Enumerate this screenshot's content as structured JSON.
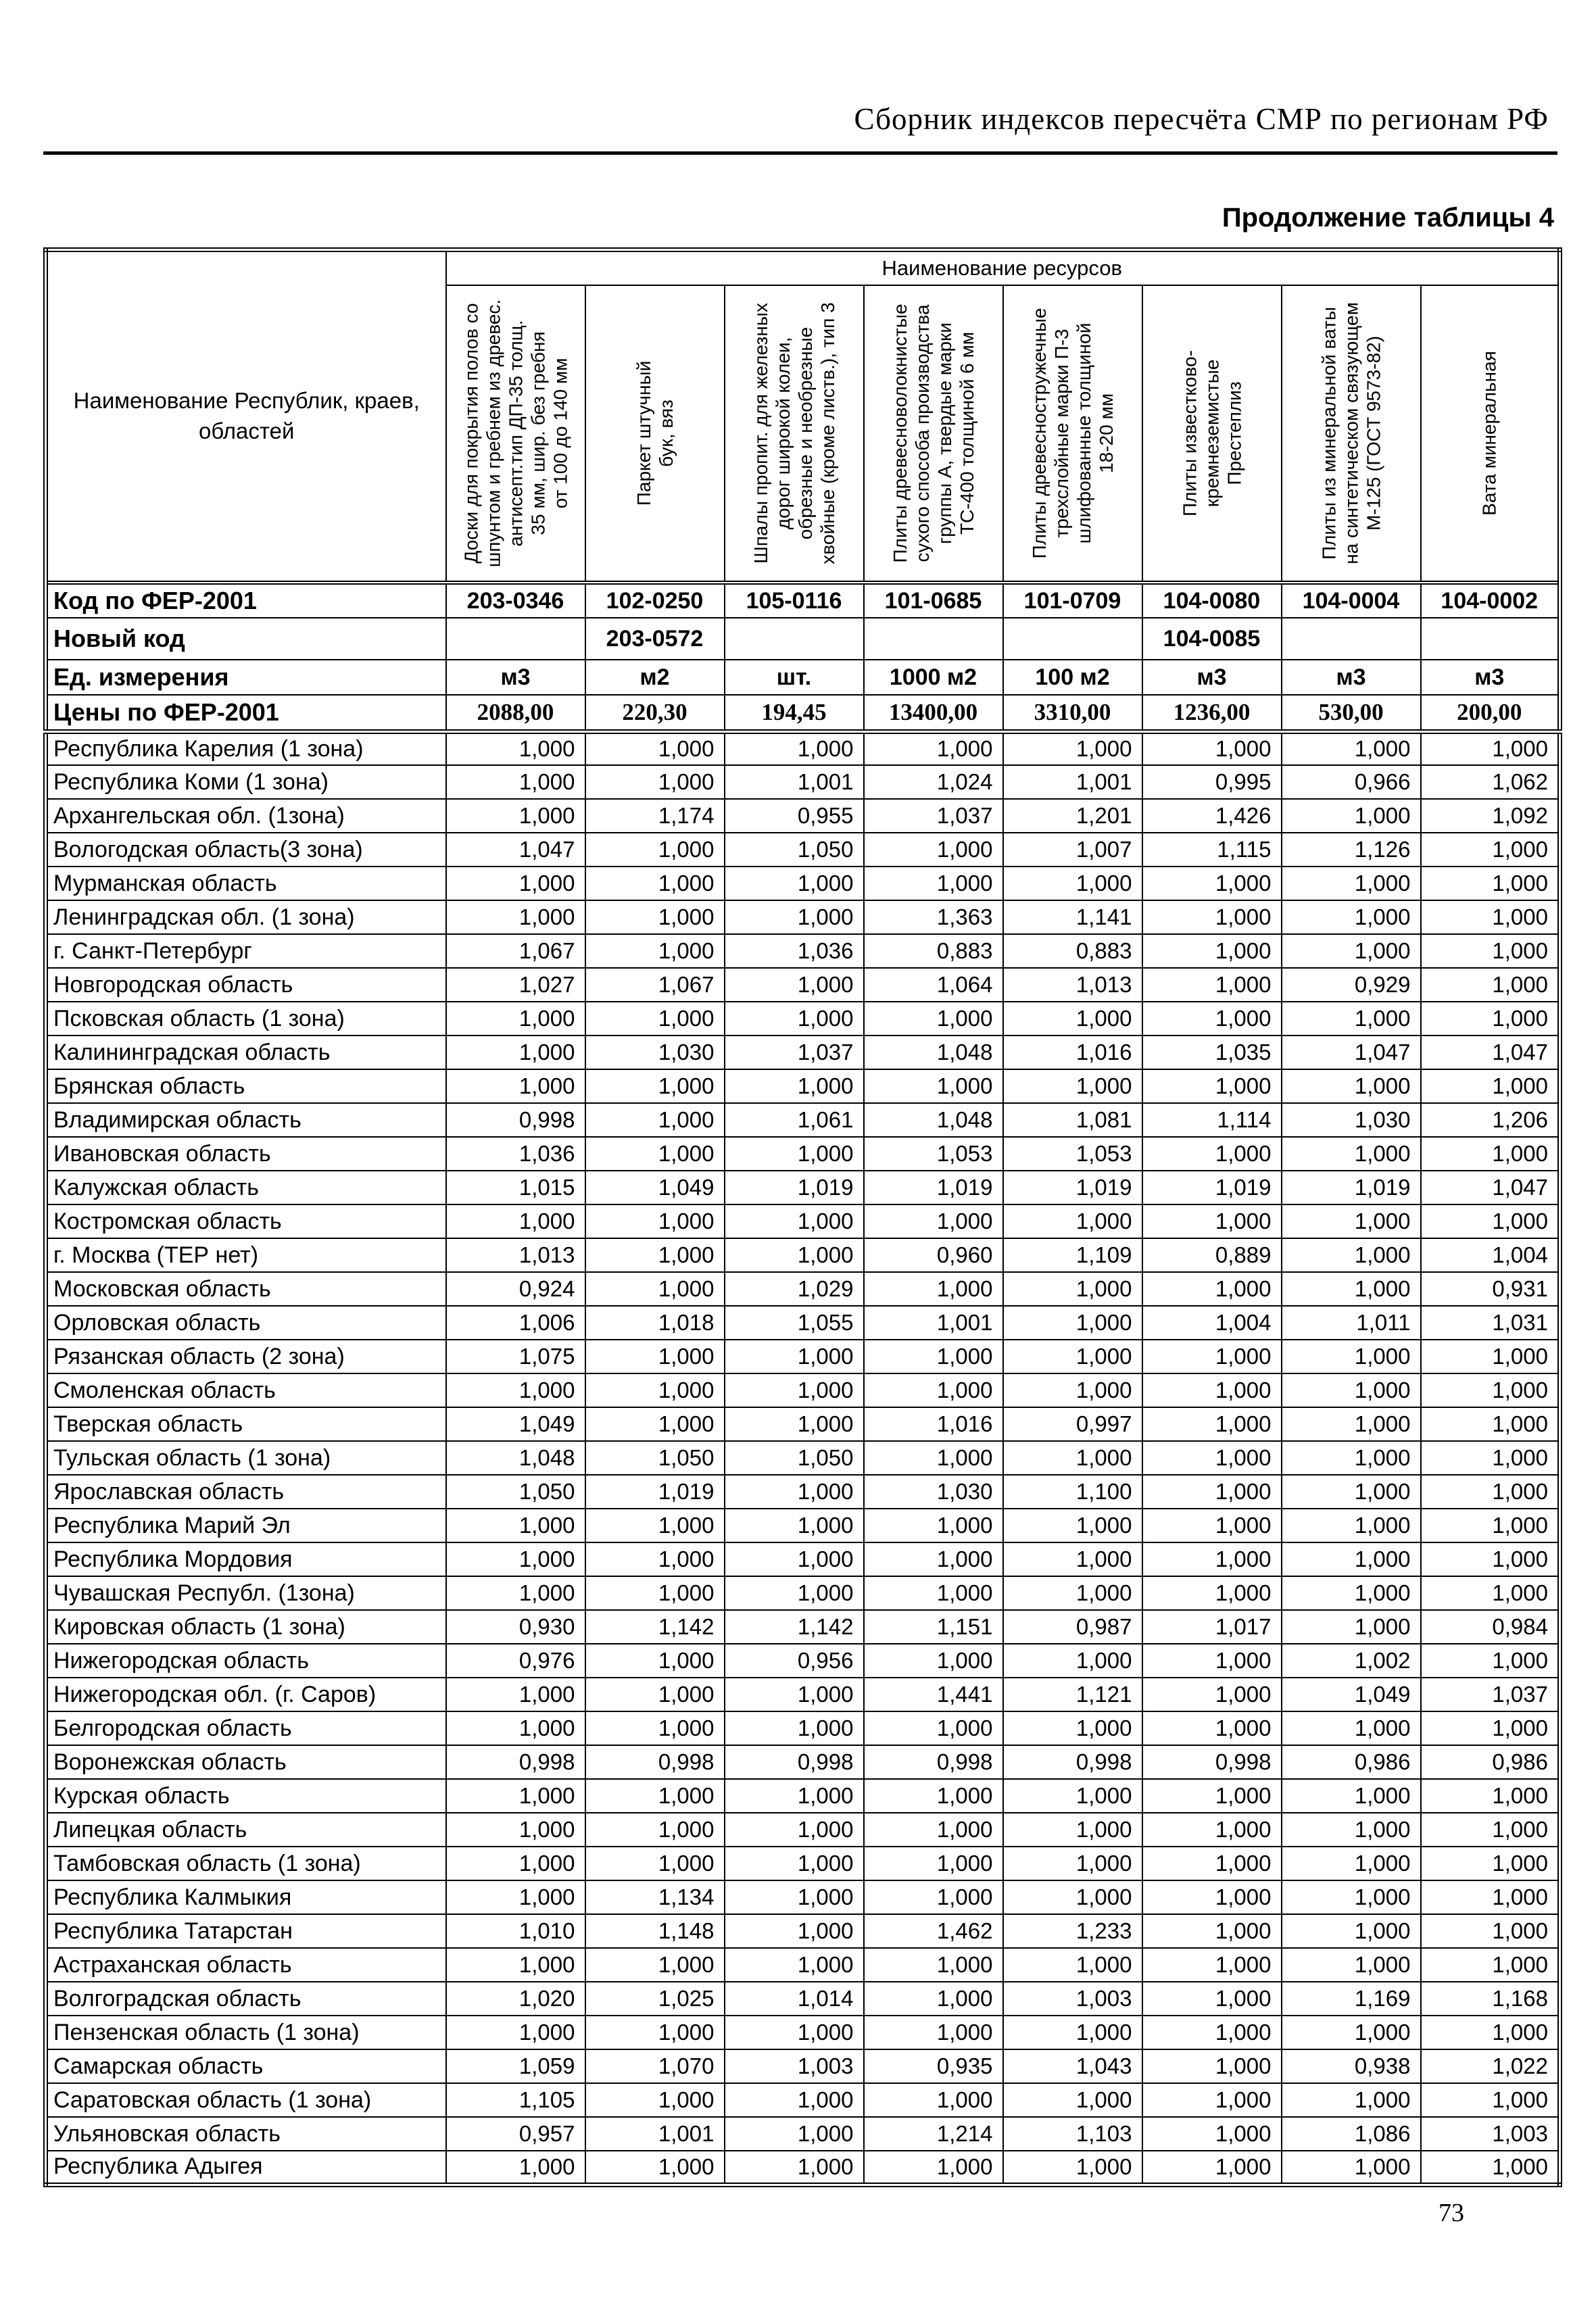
{
  "page": {
    "header_title": "Сборник индексов пересчёта СМР  по регионам РФ",
    "table_caption": "Продолжение таблицы 4",
    "page_number": "73"
  },
  "table": {
    "region_header": "Наименование Республик, краев,\nобластей",
    "resources_header": "Наименование ресурсов",
    "columns": [
      "Доски для  покрытия полов со\nшпунтом и гребнем  из древес.\nантисепт.тип  ДП-35 толщ.\n35 мм, шир. без гребня\nот 100 до 140 мм",
      "Паркет штучный\nбук, вяз",
      "Шпалы пропит. для железных\nдорог широкой колеи,\nобрезные и необрезные\nхвойные (кроме листв.), тип 3",
      "Плиты  древесноволокнистые\nсухого способа производства\nгруппы А, твердые марки\nТС-400 толщиной 6 мм",
      "Плиты древесностружечные\nтрехслойные марки П-3\nшлифованные  толщиной\n18-20 мм",
      "Плиты известково-\nкремнеземистые\nПрестеплиз",
      "Плиты из минеральной  ваты\nна синтетическом связующем\nМ-125 (ГОСТ 9573-82)",
      "Вата минеральная"
    ],
    "meta_rows": [
      {
        "label": "Код по ФЕР-2001",
        "values": [
          "203-0346",
          "102-0250",
          "105-0116",
          "101-0685",
          "101-0709",
          "104-0080",
          "104-0004",
          "104-0002"
        ]
      },
      {
        "label": "Новый код",
        "values": [
          "",
          "203-0572",
          "",
          "",
          "",
          "104-0085",
          "",
          ""
        ]
      },
      {
        "label": "Ед. измерения",
        "values": [
          "м3",
          "м2",
          "шт.",
          "1000 м2",
          "100 м2",
          "м3",
          "м3",
          "м3"
        ]
      },
      {
        "label": "Цены по ФЕР-2001",
        "values": [
          "2088,00",
          "220,30",
          "194,45",
          "13400,00",
          "3310,00",
          "1236,00",
          "530,00",
          "200,00"
        ]
      }
    ],
    "regions": [
      {
        "name": "Республика Карелия (1 зона)",
        "values": [
          "1,000",
          "1,000",
          "1,000",
          "1,000",
          "1,000",
          "1,000",
          "1,000",
          "1,000"
        ]
      },
      {
        "name": "Республика Коми (1 зона)",
        "values": [
          "1,000",
          "1,000",
          "1,001",
          "1,024",
          "1,001",
          "0,995",
          "0,966",
          "1,062"
        ]
      },
      {
        "name": "Архангельская обл. (1зона)",
        "values": [
          "1,000",
          "1,174",
          "0,955",
          "1,037",
          "1,201",
          "1,426",
          "1,000",
          "1,092"
        ]
      },
      {
        "name": "Вологодская область(3 зона)",
        "values": [
          "1,047",
          "1,000",
          "1,050",
          "1,000",
          "1,007",
          "1,115",
          "1,126",
          "1,000"
        ]
      },
      {
        "name": "Мурманская область",
        "values": [
          "1,000",
          "1,000",
          "1,000",
          "1,000",
          "1,000",
          "1,000",
          "1,000",
          "1,000"
        ]
      },
      {
        "name": "Ленинградская обл. (1 зона)",
        "values": [
          "1,000",
          "1,000",
          "1,000",
          "1,363",
          "1,141",
          "1,000",
          "1,000",
          "1,000"
        ]
      },
      {
        "name": "г. Санкт-Петербург",
        "values": [
          "1,067",
          "1,000",
          "1,036",
          "0,883",
          "0,883",
          "1,000",
          "1,000",
          "1,000"
        ]
      },
      {
        "name": "Новгородская область",
        "values": [
          "1,027",
          "1,067",
          "1,000",
          "1,064",
          "1,013",
          "1,000",
          "0,929",
          "1,000"
        ]
      },
      {
        "name": "Псковская область (1 зона)",
        "values": [
          "1,000",
          "1,000",
          "1,000",
          "1,000",
          "1,000",
          "1,000",
          "1,000",
          "1,000"
        ]
      },
      {
        "name": "Калининградская область",
        "values": [
          "1,000",
          "1,030",
          "1,037",
          "1,048",
          "1,016",
          "1,035",
          "1,047",
          "1,047"
        ]
      },
      {
        "name": "Брянская область",
        "values": [
          "1,000",
          "1,000",
          "1,000",
          "1,000",
          "1,000",
          "1,000",
          "1,000",
          "1,000"
        ]
      },
      {
        "name": "Владимирская область",
        "values": [
          "0,998",
          "1,000",
          "1,061",
          "1,048",
          "1,081",
          "1,114",
          "1,030",
          "1,206"
        ]
      },
      {
        "name": "Ивановская область",
        "values": [
          "1,036",
          "1,000",
          "1,000",
          "1,053",
          "1,053",
          "1,000",
          "1,000",
          "1,000"
        ]
      },
      {
        "name": "Калужская область",
        "values": [
          "1,015",
          "1,049",
          "1,019",
          "1,019",
          "1,019",
          "1,019",
          "1,019",
          "1,047"
        ]
      },
      {
        "name": "Костромская область",
        "values": [
          "1,000",
          "1,000",
          "1,000",
          "1,000",
          "1,000",
          "1,000",
          "1,000",
          "1,000"
        ]
      },
      {
        "name": "г. Москва (ТЕР нет)",
        "values": [
          "1,013",
          "1,000",
          "1,000",
          "0,960",
          "1,109",
          "0,889",
          "1,000",
          "1,004"
        ]
      },
      {
        "name": "Московская  область",
        "values": [
          "0,924",
          "1,000",
          "1,029",
          "1,000",
          "1,000",
          "1,000",
          "1,000",
          "0,931"
        ]
      },
      {
        "name": "Орловская область",
        "values": [
          "1,006",
          "1,018",
          "1,055",
          "1,001",
          "1,000",
          "1,004",
          "1,011",
          "1,031"
        ]
      },
      {
        "name": "Рязанская область (2 зона)",
        "values": [
          "1,075",
          "1,000",
          "1,000",
          "1,000",
          "1,000",
          "1,000",
          "1,000",
          "1,000"
        ]
      },
      {
        "name": "Смоленская область",
        "values": [
          "1,000",
          "1,000",
          "1,000",
          "1,000",
          "1,000",
          "1,000",
          "1,000",
          "1,000"
        ]
      },
      {
        "name": "Тверская область",
        "values": [
          "1,049",
          "1,000",
          "1,000",
          "1,016",
          "0,997",
          "1,000",
          "1,000",
          "1,000"
        ]
      },
      {
        "name": "Тульская область (1 зона)",
        "values": [
          "1,048",
          "1,050",
          "1,050",
          "1,000",
          "1,000",
          "1,000",
          "1,000",
          "1,000"
        ]
      },
      {
        "name": "Ярославская область",
        "values": [
          "1,050",
          "1,019",
          "1,000",
          "1,030",
          "1,100",
          "1,000",
          "1,000",
          "1,000"
        ]
      },
      {
        "name": "Республика Марий Эл",
        "values": [
          "1,000",
          "1,000",
          "1,000",
          "1,000",
          "1,000",
          "1,000",
          "1,000",
          "1,000"
        ]
      },
      {
        "name": "Республика Мордовия",
        "values": [
          "1,000",
          "1,000",
          "1,000",
          "1,000",
          "1,000",
          "1,000",
          "1,000",
          "1,000"
        ]
      },
      {
        "name": "Чувашская Республ. (1зона)",
        "values": [
          "1,000",
          "1,000",
          "1,000",
          "1,000",
          "1,000",
          "1,000",
          "1,000",
          "1,000"
        ]
      },
      {
        "name": "Кировская область (1 зона)",
        "values": [
          "0,930",
          "1,142",
          "1,142",
          "1,151",
          "0,987",
          "1,017",
          "1,000",
          "0,984"
        ]
      },
      {
        "name": "Нижегородская область",
        "values": [
          "0,976",
          "1,000",
          "0,956",
          "1,000",
          "1,000",
          "1,000",
          "1,002",
          "1,000"
        ]
      },
      {
        "name": "Нижегородская обл. (г. Саров)",
        "values": [
          "1,000",
          "1,000",
          "1,000",
          "1,441",
          "1,121",
          "1,000",
          "1,049",
          "1,037"
        ]
      },
      {
        "name": "Белгородская область",
        "values": [
          "1,000",
          "1,000",
          "1,000",
          "1,000",
          "1,000",
          "1,000",
          "1,000",
          "1,000"
        ]
      },
      {
        "name": "Воронежская область",
        "values": [
          "0,998",
          "0,998",
          "0,998",
          "0,998",
          "0,998",
          "0,998",
          "0,986",
          "0,986"
        ]
      },
      {
        "name": "Курская область",
        "values": [
          "1,000",
          "1,000",
          "1,000",
          "1,000",
          "1,000",
          "1,000",
          "1,000",
          "1,000"
        ]
      },
      {
        "name": "Липецкая область",
        "values": [
          "1,000",
          "1,000",
          "1,000",
          "1,000",
          "1,000",
          "1,000",
          "1,000",
          "1,000"
        ]
      },
      {
        "name": "Тамбовская область (1 зона)",
        "values": [
          "1,000",
          "1,000",
          "1,000",
          "1,000",
          "1,000",
          "1,000",
          "1,000",
          "1,000"
        ]
      },
      {
        "name": "Республика Калмыкия",
        "values": [
          "1,000",
          "1,134",
          "1,000",
          "1,000",
          "1,000",
          "1,000",
          "1,000",
          "1,000"
        ]
      },
      {
        "name": "Республика Татарстан",
        "values": [
          "1,010",
          "1,148",
          "1,000",
          "1,462",
          "1,233",
          "1,000",
          "1,000",
          "1,000"
        ]
      },
      {
        "name": "Астраханская область",
        "values": [
          "1,000",
          "1,000",
          "1,000",
          "1,000",
          "1,000",
          "1,000",
          "1,000",
          "1,000"
        ]
      },
      {
        "name": "Волгоградская область",
        "values": [
          "1,020",
          "1,025",
          "1,014",
          "1,000",
          "1,003",
          "1,000",
          "1,169",
          "1,168"
        ]
      },
      {
        "name": "Пензенская область (1 зона)",
        "values": [
          "1,000",
          "1,000",
          "1,000",
          "1,000",
          "1,000",
          "1,000",
          "1,000",
          "1,000"
        ]
      },
      {
        "name": "Самарская область",
        "values": [
          "1,059",
          "1,070",
          "1,003",
          "0,935",
          "1,043",
          "1,000",
          "0,938",
          "1,022"
        ]
      },
      {
        "name": "Саратовская область (1 зона)",
        "values": [
          "1,105",
          "1,000",
          "1,000",
          "1,000",
          "1,000",
          "1,000",
          "1,000",
          "1,000"
        ]
      },
      {
        "name": "Ульяновская область",
        "values": [
          "0,957",
          "1,001",
          "1,000",
          "1,214",
          "1,103",
          "1,000",
          "1,086",
          "1,003"
        ]
      },
      {
        "name": "Республика Адыгея",
        "values": [
          "1,000",
          "1,000",
          "1,000",
          "1,000",
          "1,000",
          "1,000",
          "1,000",
          "1,000"
        ]
      }
    ]
  }
}
